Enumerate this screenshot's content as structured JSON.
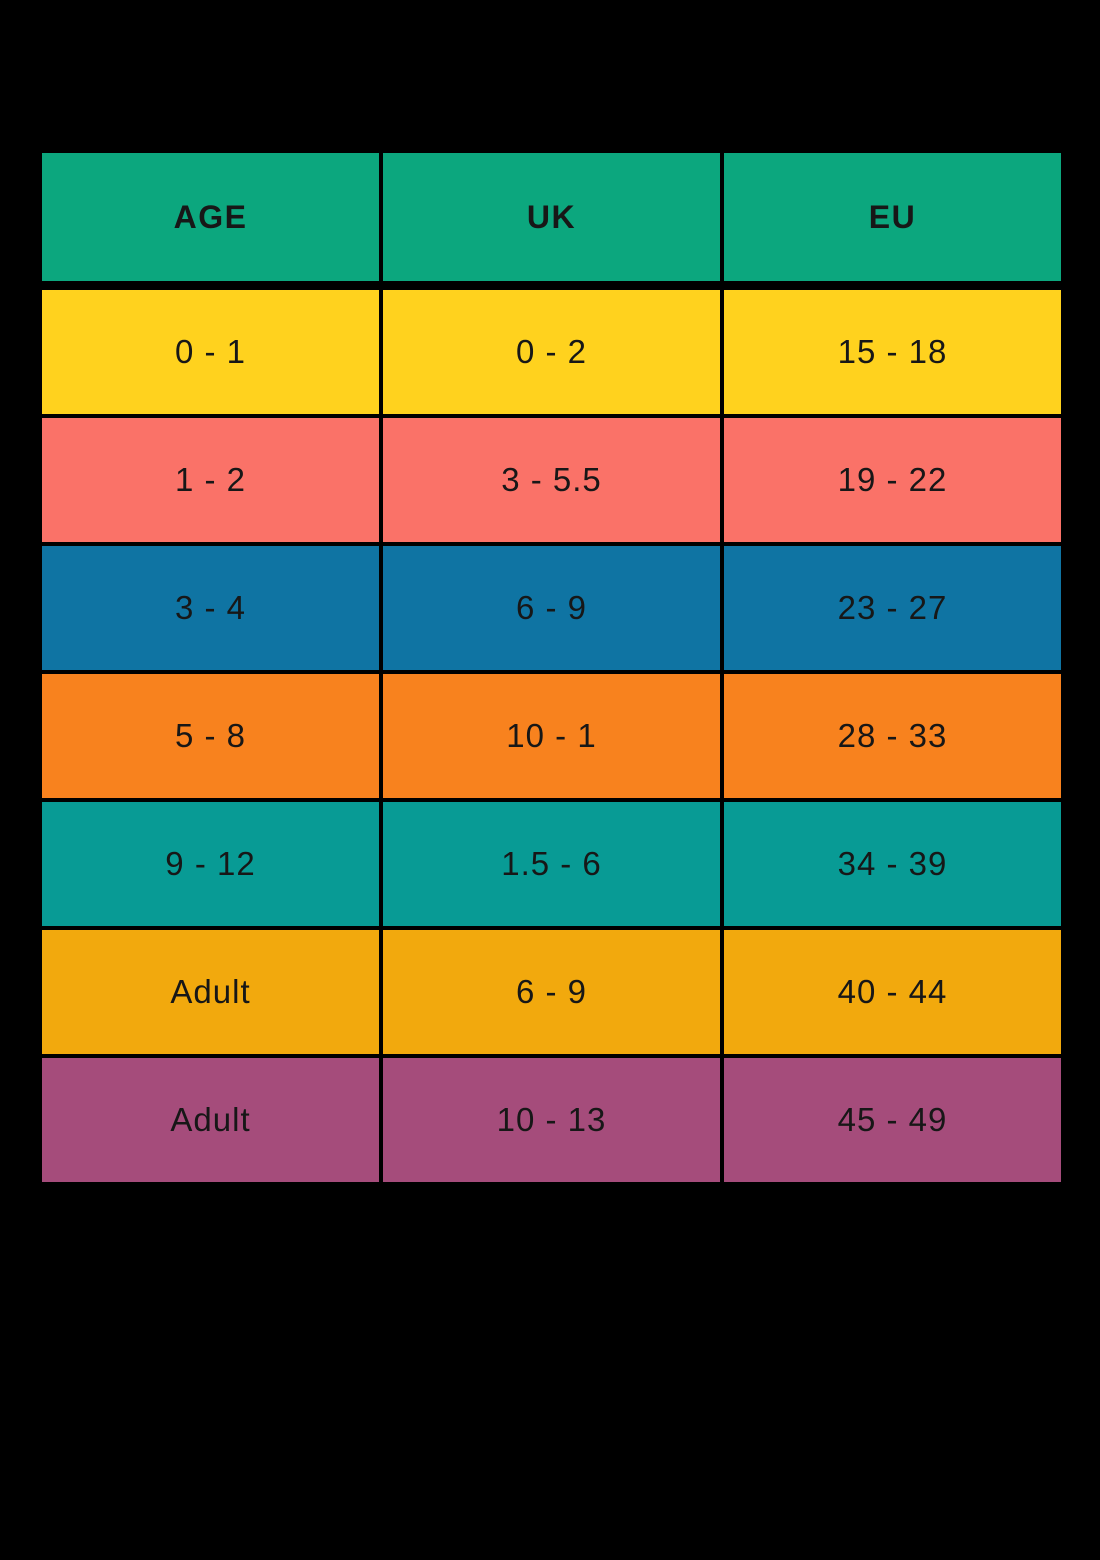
{
  "chart_data": {
    "type": "table",
    "columns": [
      "AGE",
      "UK",
      "EU"
    ],
    "rows": [
      {
        "cells": [
          "0 - 1",
          "0 - 2",
          "15 - 18"
        ],
        "color": "#FFD21E"
      },
      {
        "cells": [
          "1 - 2",
          "3 - 5.5",
          "19 - 22"
        ],
        "color": "#FA7268"
      },
      {
        "cells": [
          "3 - 4",
          "6 - 9",
          "23 - 27"
        ],
        "color": "#0F74A3"
      },
      {
        "cells": [
          "5 - 8",
          "10 - 1",
          "28 - 33"
        ],
        "color": "#F8821E"
      },
      {
        "cells": [
          "9 - 12",
          "1.5 - 6",
          "34 - 39"
        ],
        "color": "#089B95"
      },
      {
        "cells": [
          "Adult",
          "6 - 9",
          "40 - 44"
        ],
        "color": "#F2A90D"
      },
      {
        "cells": [
          "Adult",
          "10 - 13",
          "45 - 49"
        ],
        "color": "#A54C7B"
      }
    ],
    "header_color": "#0CA77E",
    "background_color": "#000000",
    "text_color": "#171717",
    "legend_position": "none",
    "grid": "black-separators"
  }
}
